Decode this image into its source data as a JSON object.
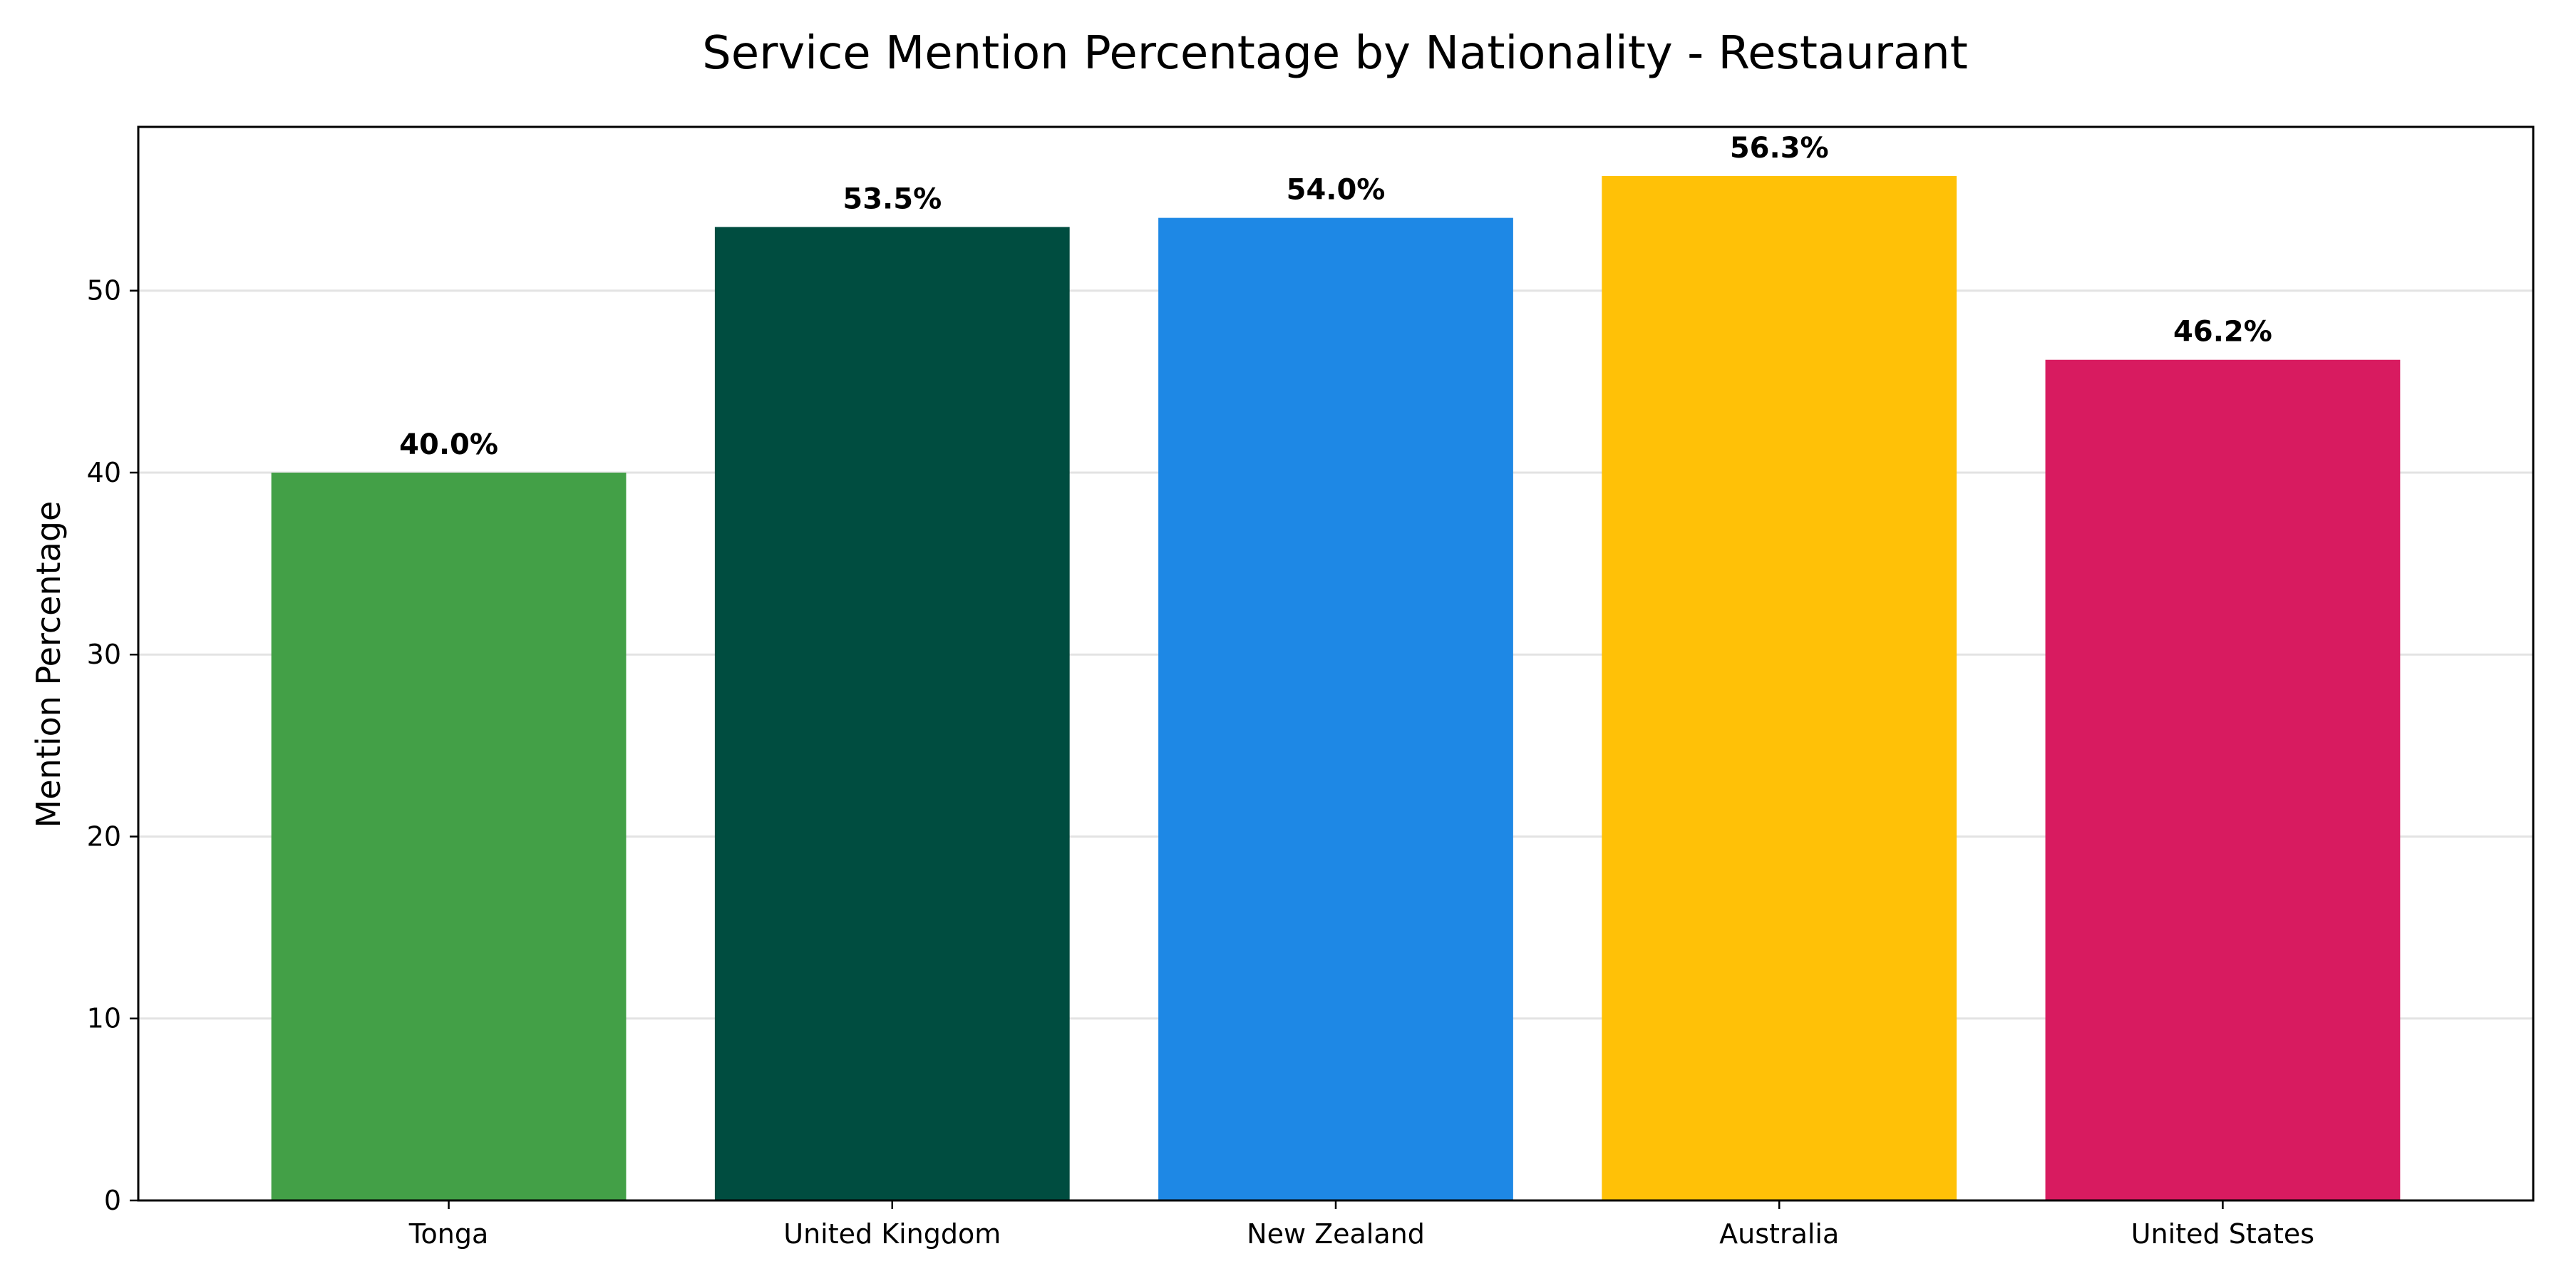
{
  "chart_data": {
    "type": "bar",
    "title": "Service Mention Percentage by Nationality - Restaurant",
    "xlabel": "",
    "ylabel": "Mention Percentage",
    "categories": [
      "Tonga",
      "United Kingdom",
      "New Zealand",
      "Australia",
      "United States"
    ],
    "values": [
      40.0,
      53.5,
      54.0,
      56.3,
      46.2
    ],
    "value_labels": [
      "40.0%",
      "53.5%",
      "54.0%",
      "56.3%",
      "46.2%"
    ],
    "colors": [
      "#43a047",
      "#004d40",
      "#1e88e5",
      "#ffc107",
      "#d81b60"
    ],
    "ylim": [
      0,
      59
    ],
    "yticks": [
      0,
      10,
      20,
      30,
      40,
      50
    ],
    "grid": "horizontal",
    "legend": "none"
  }
}
